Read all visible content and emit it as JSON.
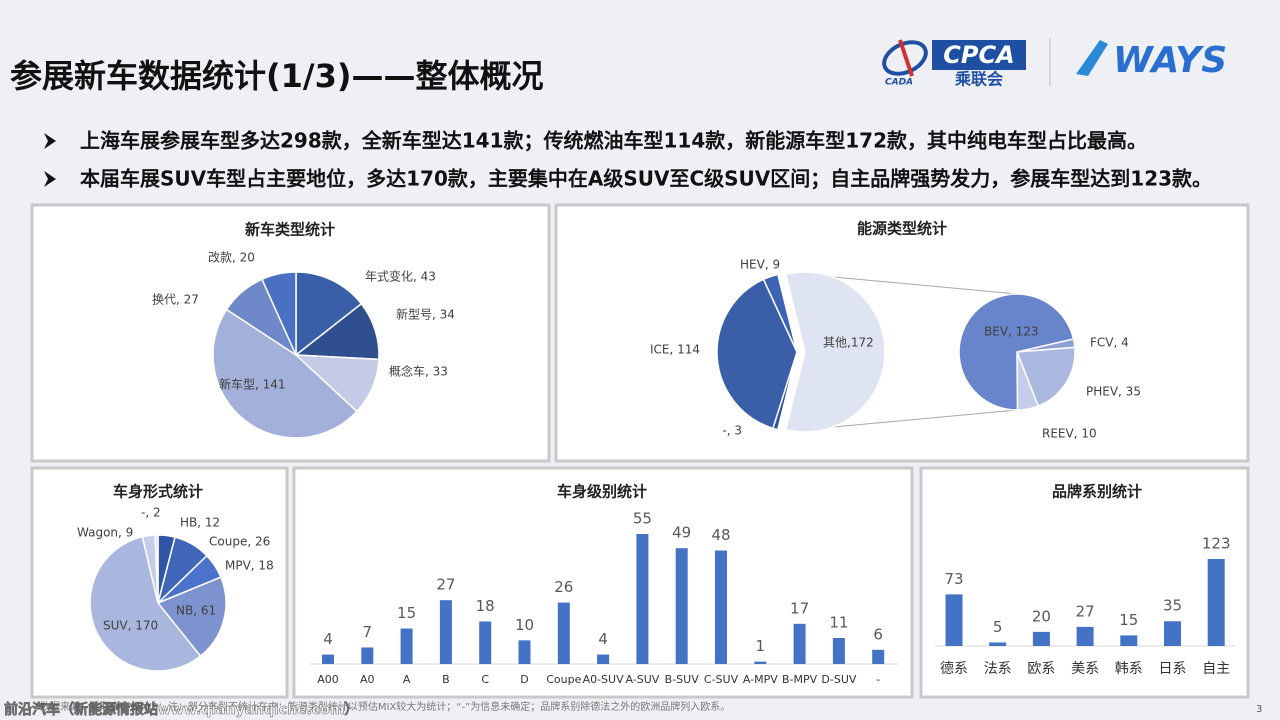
{
  "header": {
    "title": "参展新车数据统计(1/3)——整体概况",
    "logo_cada": "CADA",
    "logo_cpca": "CPCA",
    "logo_cpca_cn": "乘联会",
    "logo_ways": "WAYS"
  },
  "bullets": [
    "上海车展参展车型多达298款，全新车型达141款；传统燃油车型114款，新能源车型172款，其中纯电车型占比最高。",
    "本届车展SUV车型占主要地位，多达170款，主要集中在A级SUV至C级SUV区间；自主品牌强势发力，参展车型达到123款。"
  ],
  "footer": {
    "note": "数据来源：乘联会、WAYS；注：部分车型不统计在内；能源类型统计以预估MIX较大为统计；“-”为信息未确定；品牌系别除德法之外的欧洲品牌列入欧系。",
    "watermark": "前沿汽车（新能源情报站www.qianyanqiche.com）",
    "page": "3"
  },
  "chart_data": [
    {
      "type": "pie",
      "title": "新车类型统计",
      "categories": [
        "年式变化",
        "新型号",
        "概念车",
        "新车型",
        "换代",
        "改款"
      ],
      "values": [
        43,
        34,
        33,
        141,
        27,
        20
      ],
      "value_labels": [
        "年式变化, 43",
        "新型号, 34",
        "概念车, 33",
        "新车型, 141",
        "换代, 27",
        "改款, 20"
      ],
      "colors": [
        "#3a5ea8",
        "#2f4f8f",
        "#c3cbe6",
        "#a2b0da",
        "#6f88c9",
        "#4a70c2"
      ]
    },
    {
      "type": "pie",
      "title": "能源类型统计",
      "categories": [
        "其他",
        "-",
        "ICE",
        "HEV"
      ],
      "values": [
        172,
        3,
        114,
        9
      ],
      "value_labels": [
        "其他,172",
        "-, 3",
        "ICE, 114",
        "HEV, 9"
      ],
      "colors": [
        "#dfe4f2",
        "#2f55a0",
        "#3a5ea8",
        "#3d63b5"
      ],
      "breakdown": {
        "categories": [
          "FCV",
          "PHEV",
          "REEV",
          "BEV"
        ],
        "values": [
          4,
          35,
          10,
          123
        ],
        "value_labels": [
          "FCV, 4",
          "PHEV, 35",
          "REEV, 10",
          "BEV, 123"
        ],
        "colors": [
          "#8da0d4",
          "#aab7df",
          "#c5cde8",
          "#6884cb"
        ]
      }
    },
    {
      "type": "pie",
      "title": "车身形式统计",
      "categories": [
        "HB",
        "Coupe",
        "MPV",
        "NB",
        "SUV",
        "Wagon",
        "-"
      ],
      "values": [
        12,
        26,
        18,
        61,
        170,
        9,
        2
      ],
      "value_labels": [
        "HB, 12",
        "Coupe, 26",
        "MPV, 18",
        "NB, 61",
        "SUV, 170",
        "Wagon, 9",
        "-, 2"
      ],
      "colors": [
        "#2f55a4",
        "#3f66b8",
        "#4c73cc",
        "#7d93d0",
        "#a9b6de",
        "#c5cde8",
        "#d9deef"
      ]
    },
    {
      "type": "bar",
      "title": "车身级别统计",
      "categories": [
        "A00",
        "A0",
        "A",
        "B",
        "C",
        "D",
        "Coupe",
        "A0-SUV",
        "A-SUV",
        "B-SUV",
        "C-SUV",
        "A-MPV",
        "B-MPV",
        "D-SUV",
        "-"
      ],
      "values": [
        4,
        7,
        15,
        27,
        18,
        10,
        26,
        4,
        55,
        49,
        48,
        1,
        17,
        11,
        6
      ],
      "color": "#4472c4"
    },
    {
      "type": "bar",
      "title": "品牌系别统计",
      "categories": [
        "德系",
        "法系",
        "欧系",
        "美系",
        "韩系",
        "日系",
        "自主"
      ],
      "values": [
        73,
        5,
        20,
        27,
        15,
        35,
        123
      ],
      "color": "#4472c4"
    }
  ]
}
